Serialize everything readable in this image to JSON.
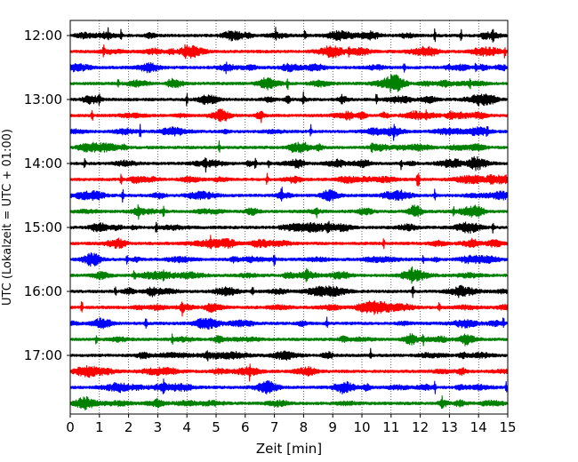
{
  "chart_data": {
    "type": "line",
    "title": "",
    "xlabel": "Zeit  [min]",
    "ylabel": "UTC (Lokalzeit = UTC + 01:00)",
    "xlim": [
      0,
      15
    ],
    "xticks": [
      0,
      1,
      2,
      3,
      4,
      5,
      6,
      7,
      8,
      9,
      10,
      11,
      12,
      13,
      14,
      15
    ],
    "ytick_labels": [
      "12:00",
      "13:00",
      "14:00",
      "15:00",
      "16:00",
      "17:00"
    ],
    "grid": "vertical dotted lines at each minute",
    "trace_interval_minutes": 15,
    "color_cycle": [
      "#000000",
      "#ff0000",
      "#0000ff",
      "#008000"
    ],
    "traces": [
      {
        "start": "12:00",
        "color": "#000000",
        "spikes": [
          1.3,
          1.75,
          7.05,
          8.05,
          12.5,
          13.4,
          14.5
        ]
      },
      {
        "start": "12:15",
        "color": "#ff0000",
        "spikes": [
          1.15,
          3.95,
          9.55,
          14.9
        ]
      },
      {
        "start": "12:30",
        "color": "#0000ff",
        "spikes": [
          5.35,
          11.45,
          13.9
        ]
      },
      {
        "start": "12:45",
        "color": "#008000",
        "spikes": [
          1.65,
          7.45,
          13.7
        ]
      },
      {
        "start": "13:00",
        "color": "#000000",
        "spikes": [
          1.0,
          4.0,
          8.0,
          9.3,
          10.5
        ]
      },
      {
        "start": "13:15",
        "color": "#ff0000",
        "spikes": [
          0.75,
          6.55,
          12.2
        ]
      },
      {
        "start": "13:30",
        "color": "#0000ff",
        "spikes": [
          2.4,
          8.25,
          11.1,
          14.3
        ]
      },
      {
        "start": "13:45",
        "color": "#008000",
        "spikes": [
          5.1,
          10.35
        ]
      },
      {
        "start": "14:00",
        "color": "#000000",
        "spikes": [
          0.5,
          4.65,
          6.35,
          6.8,
          11.35
        ]
      },
      {
        "start": "14:15",
        "color": "#ff0000",
        "spikes": [
          1.75,
          6.75,
          11.9,
          11.95
        ]
      },
      {
        "start": "14:30",
        "color": "#0000ff",
        "spikes": [
          1.8,
          7.25,
          12.5
        ]
      },
      {
        "start": "14:45",
        "color": "#008000",
        "spikes": [
          2.35,
          3.2,
          8.45,
          13.15
        ]
      },
      {
        "start": "15:00",
        "color": "#000000",
        "spikes": [
          2.95,
          8.85,
          14.5
        ]
      },
      {
        "start": "15:15",
        "color": "#ff0000",
        "spikes": [
          4.8,
          10.75
        ]
      },
      {
        "start": "15:30",
        "color": "#0000ff",
        "spikes": [
          1.95,
          7.0,
          12.1
        ]
      },
      {
        "start": "15:45",
        "color": "#008000",
        "spikes": [
          2.2,
          3.2,
          8.1,
          11.7
        ]
      },
      {
        "start": "16:00",
        "color": "#000000",
        "spikes": [
          1.55,
          6.25,
          11.75
        ]
      },
      {
        "start": "16:15",
        "color": "#ff0000",
        "spikes": [
          0.4,
          3.85,
          12.65
        ]
      },
      {
        "start": "16:30",
        "color": "#0000ff",
        "spikes": [
          2.6,
          8.8,
          14.85
        ]
      },
      {
        "start": "16:45",
        "color": "#008000",
        "spikes": [
          0.9,
          3.5,
          12.1
        ]
      },
      {
        "start": "17:00",
        "color": "#000000",
        "spikes": [
          4.7,
          10.3
        ]
      },
      {
        "start": "17:15",
        "color": "#ff0000",
        "spikes": [
          6.15
        ]
      },
      {
        "start": "17:30",
        "color": "#0000ff",
        "spikes": [
          3.2,
          12.5,
          14.95
        ]
      },
      {
        "start": "17:45",
        "color": "#008000",
        "spikes": [
          12.75
        ]
      }
    ]
  }
}
